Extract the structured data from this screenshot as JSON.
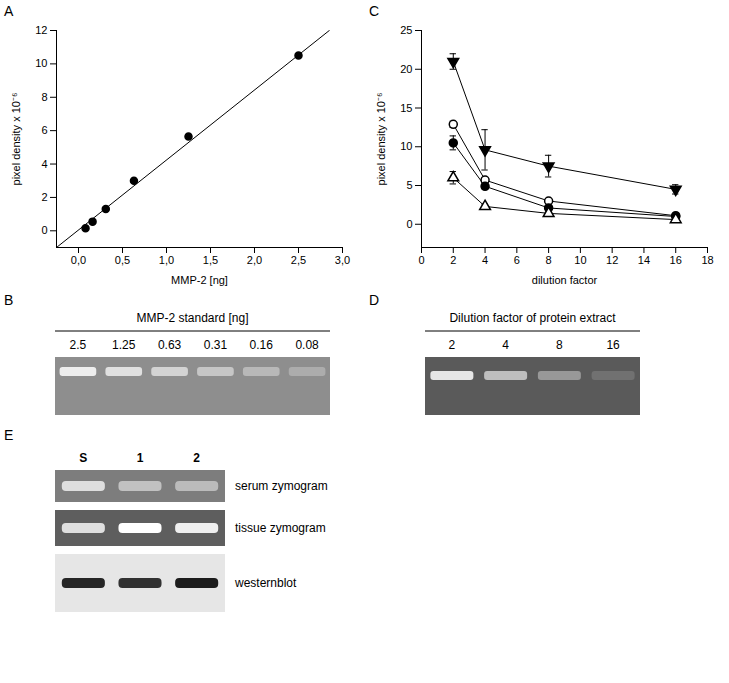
{
  "chart_data": [
    {
      "type": "scatter",
      "title": "A",
      "x_label": "MMP-2 [ng]",
      "y_label": "pixel density x 10⁻⁶",
      "x": [
        0.08,
        0.16,
        0.31,
        0.63,
        1.25,
        2.5
      ],
      "values": [
        0.15,
        0.55,
        1.3,
        3.0,
        5.65,
        10.5
      ],
      "color": "#000000",
      "marker": "circle",
      "fit_line": {
        "x": [
          -0.25,
          2.85
        ],
        "y": [
          -1.0,
          12.0
        ]
      },
      "xlim": [
        -0.25,
        3.0
      ],
      "xticks": [
        {
          "value": 0,
          "label": "0,0"
        },
        {
          "value": 0.5,
          "label": "0,5"
        },
        {
          "value": 1,
          "label": "1,0"
        },
        {
          "value": 1.5,
          "label": "1,5"
        },
        {
          "value": 2,
          "label": "2,0"
        },
        {
          "value": 2.5,
          "label": "2,5"
        },
        {
          "value": 3,
          "label": "3,0"
        }
      ],
      "ylim": [
        -1,
        12
      ],
      "yticks": [
        0,
        2,
        4,
        6,
        8,
        10,
        12
      ]
    },
    {
      "type": "line",
      "title": "C",
      "x_label": "dilution factor",
      "y_label": "pixel density x 10⁻⁶",
      "x": [
        2,
        4,
        8,
        16
      ],
      "series": [
        {
          "color": "#000000",
          "marker": "triangle-down",
          "values": [
            21.0,
            9.6,
            7.5,
            4.5
          ],
          "errors": [
            1.0,
            2.6,
            1.4,
            0.6
          ]
        },
        {
          "color": "#000000",
          "marker": "circle-open",
          "values": [
            12.9,
            5.7,
            3.0,
            1.1
          ],
          "errors": [
            0.4,
            0.3,
            0.2,
            0.2
          ]
        },
        {
          "color": "#000000",
          "marker": "circle",
          "values": [
            10.5,
            4.9,
            2.1,
            1.0
          ],
          "errors": [
            0.9,
            0.3,
            0.3,
            0.2
          ]
        },
        {
          "color": "#000000",
          "marker": "triangle-open",
          "values": [
            6.0,
            2.3,
            1.4,
            0.6
          ],
          "errors": [
            0.8,
            0.3,
            0.2,
            0.2
          ]
        }
      ],
      "xlim": [
        0,
        18
      ],
      "xticks": [
        0,
        2,
        4,
        6,
        8,
        10,
        12,
        14,
        16,
        18
      ],
      "ylim": [
        -3,
        25
      ],
      "yticks": [
        0,
        5,
        10,
        15,
        20,
        25
      ]
    }
  ],
  "gels": [
    {
      "title": "B",
      "caption": "MMP-2 standard [ng]",
      "lanes": [
        "2.5",
        "1.25",
        "0.63",
        "0.31",
        "0.16",
        "0.08"
      ]
    },
    {
      "title": "D",
      "caption": "Dilution factor of protein extract",
      "lanes": [
        "2",
        "4",
        "8",
        "16"
      ]
    },
    {
      "title": "E",
      "lanes": [
        "S",
        "1",
        "2"
      ],
      "rows": [
        "serum zymogram",
        "tissue zymogram",
        "westernblot"
      ]
    }
  ]
}
